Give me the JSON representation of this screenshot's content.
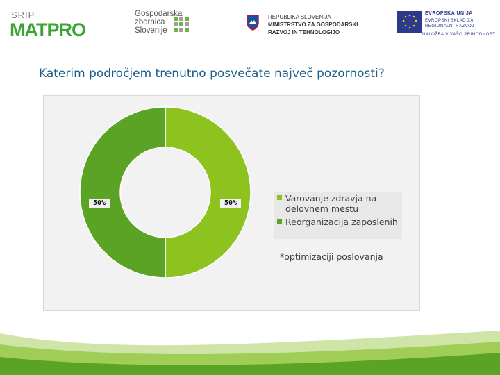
{
  "logos": {
    "srip": {
      "top": "SRIP",
      "main": "MATPRO"
    },
    "gzs": {
      "lines": [
        "Gospodarska",
        "zbornica",
        "Slovenije"
      ]
    },
    "ministry": {
      "lines": [
        "REPUBLIKA SLOVENIJA",
        "MINISTRSTVO ZA GOSPODARSKI",
        "RAZVOJ IN TEHNOLOGIJO"
      ]
    },
    "eu": {
      "lines": [
        "EVROPSKA UNIJA",
        "EVROPSKI SKLAD ZA",
        "REGIONALNI RAZVOJ",
        "NALOŽBA V VAŠO PRIHODNOST"
      ]
    }
  },
  "page_title": "Katerim področjem trenutno posvečate največ pozornosti?",
  "chart_data": {
    "type": "pie",
    "variant": "doughnut",
    "categories": [
      "Varovanje zdravja na delovnem mestu",
      "Reorganizacija zaposlenih"
    ],
    "values": [
      50,
      50
    ],
    "labels": [
      "50%",
      "50%"
    ],
    "colors": [
      "#8dc21f",
      "#5aa325"
    ],
    "legend": {
      "position": "right",
      "entries": [
        {
          "line1": "Varovanje zdravja na",
          "line2": "delovnem mestu"
        },
        {
          "line1": "Reorganizacija zaposlenih"
        }
      ]
    },
    "footnote": "*optimizaciji poslovanja"
  },
  "colors": {
    "title": "#1a5d8c",
    "chart_bg": "#f2f2f2",
    "brand_green": "#3aa535"
  }
}
